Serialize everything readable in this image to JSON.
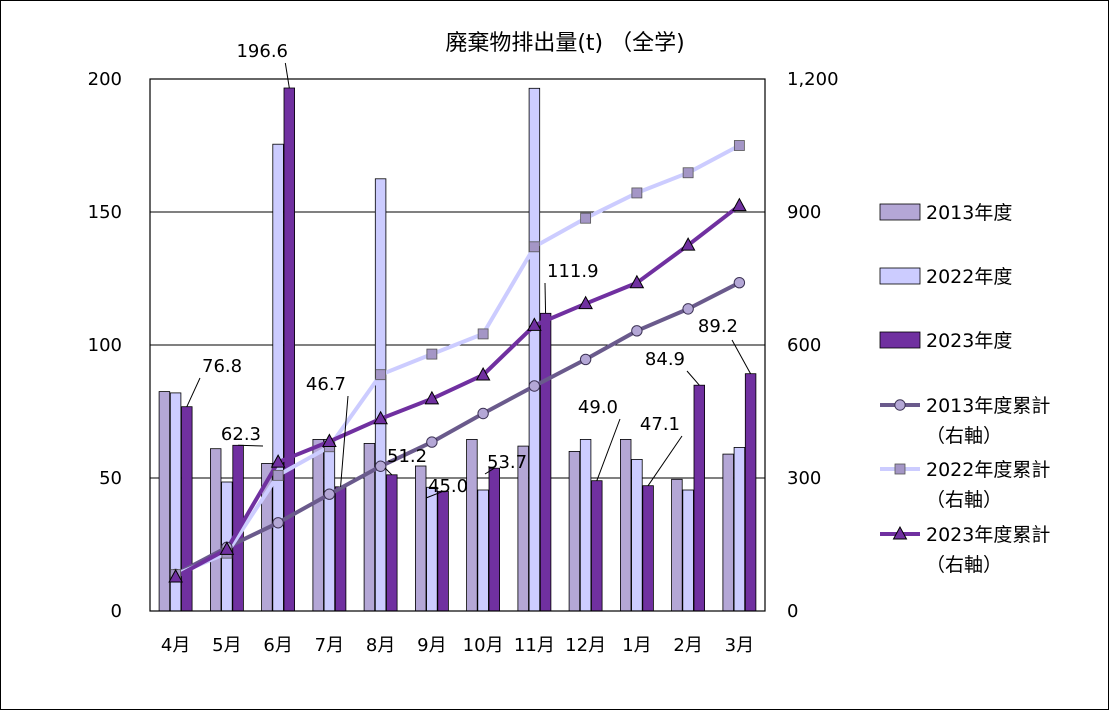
{
  "chart_data": {
    "type": "bar",
    "title": "廃棄物排出量(t) （全学)",
    "categories": [
      "4月",
      "5月",
      "6月",
      "7月",
      "8月",
      "9月",
      "10月",
      "11月",
      "12月",
      "1月",
      "2月",
      "3月"
    ],
    "left_axis": {
      "ylim": [
        0,
        200
      ],
      "ticks": [
        "0",
        "50",
        "100",
        "150",
        "200"
      ],
      "tick_values": [
        0,
        50,
        100,
        150,
        200
      ]
    },
    "right_axis": {
      "ylim": [
        0,
        1200
      ],
      "ticks": [
        "0",
        "300",
        "600",
        "900",
        "1,200"
      ],
      "tick_values": [
        0,
        300,
        600,
        900,
        1200
      ]
    },
    "grid": true,
    "legend_position": "right",
    "bar_series": [
      {
        "name": "2013年度",
        "color": "#b4a7d6",
        "values": [
          82.5,
          61,
          55.5,
          64.5,
          63,
          54.5,
          64.5,
          62,
          60,
          64.5,
          49.5,
          59
        ]
      },
      {
        "name": "2022年度",
        "color": "#ccccff",
        "values": [
          82,
          48.5,
          175.5,
          64.5,
          162.5,
          46.5,
          45.5,
          196.5,
          64.5,
          57,
          45.5,
          61.5
        ]
      },
      {
        "name": "2023年度",
        "color": "#7030a0",
        "values": [
          76.8,
          62.3,
          196.6,
          46.7,
          51.2,
          45.0,
          53.7,
          111.9,
          49.0,
          47.1,
          84.9,
          89.2
        ]
      }
    ],
    "bar_data_labels": [
      "76.8",
      "62.3",
      "196.6",
      "46.7",
      "51.2",
      "45.0",
      "53.7",
      "111.9",
      "49.0",
      "47.1",
      "84.9",
      "89.2"
    ],
    "line_series": [
      {
        "name": "2013年度累計",
        "name_sub": "（右軸）",
        "axis": "right",
        "color": "#6a5a8c",
        "marker": "circle",
        "marker_fill": "#b4a7d6",
        "values": [
          82.5,
          143.5,
          199,
          263.5,
          326.5,
          381,
          445.5,
          507.5,
          567.5,
          632,
          681.5,
          740.5
        ]
      },
      {
        "name": "2022年度累計",
        "name_sub": "（右軸）",
        "axis": "right",
        "color": "#ccccff",
        "marker": "square",
        "marker_fill": "#a496c6",
        "values": [
          82,
          130.5,
          306,
          370.5,
          533,
          579.5,
          625,
          821.5,
          886,
          943,
          988.5,
          1050
        ]
      },
      {
        "name": "2023年度累計",
        "name_sub": "（右軸）",
        "axis": "right",
        "color": "#7030a0",
        "marker": "triangle",
        "marker_fill": "#7030a0",
        "values": [
          76.8,
          139.1,
          335.7,
          382.4,
          433.6,
          478.6,
          532.3,
          644.2,
          693.2,
          740.3,
          825.2,
          914.4
        ]
      }
    ]
  }
}
